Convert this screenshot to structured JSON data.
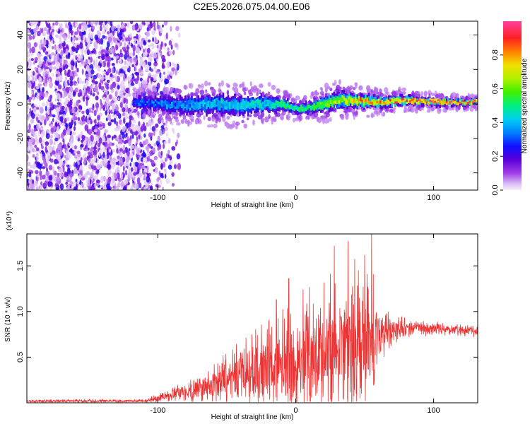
{
  "title": "C2E5.2026.075.04.00.E06",
  "chart_data": [
    {
      "type": "heatmap",
      "panel": "spectrogram",
      "xlabel": "Height of straight line (km)",
      "ylabel": "Frequency (Hz)",
      "xlim": [
        -195,
        132
      ],
      "ylim": [
        -50,
        48
      ],
      "xticks": [
        -100,
        0,
        100
      ],
      "yticks": [
        -40,
        -20,
        0,
        20,
        40
      ],
      "colorbar": {
        "label": "Normalized spectral amplitude",
        "range": [
          0,
          1
        ],
        "ticks": [
          0.0,
          0.2,
          0.4,
          0.6,
          0.8
        ],
        "tick_labels": [
          "0.0",
          "0.2",
          "0.4",
          "0.6",
          "0.8"
        ]
      },
      "noise_region_x": [
        -195,
        -95
      ],
      "ridge": {
        "x": [
          -118,
          -100,
          -80,
          -60,
          -40,
          -20,
          -10,
          0,
          10,
          20,
          30,
          40,
          60,
          80,
          100,
          132
        ],
        "freq": [
          1,
          0,
          -1,
          0,
          -1,
          0,
          0,
          -3,
          -2,
          0,
          2,
          2,
          1,
          2,
          1,
          1
        ],
        "width": [
          6,
          7,
          9,
          10,
          10,
          9,
          7,
          5,
          6,
          8,
          9,
          8,
          6,
          5,
          4,
          3
        ],
        "peak": [
          0.25,
          0.3,
          0.35,
          0.4,
          0.4,
          0.45,
          0.5,
          0.5,
          0.55,
          0.6,
          0.65,
          0.75,
          0.8,
          0.85,
          0.9,
          0.85
        ]
      }
    },
    {
      "type": "line",
      "panel": "snr",
      "xlabel": "Height of straight line (km)",
      "ylabel": "SNR (10 * v/v)",
      "multiplier": "(x10⁴)",
      "xlim": [
        -195,
        132
      ],
      "ylim": [
        0,
        1.85
      ],
      "xticks": [
        -100,
        0,
        100
      ],
      "yticks": [
        0.5,
        1.0,
        1.5
      ],
      "ytick_labels": [
        "0.5",
        "1.0",
        "1.5"
      ],
      "color": "#ee3333",
      "envelope": {
        "x": [
          -195,
          -110,
          -100,
          -80,
          -60,
          -40,
          -20,
          0,
          20,
          30,
          40,
          50,
          55,
          60,
          70,
          80,
          100,
          132
        ],
        "base": [
          0.02,
          0.02,
          0.05,
          0.12,
          0.2,
          0.3,
          0.4,
          0.45,
          0.55,
          0.6,
          0.55,
          0.6,
          0.7,
          0.75,
          0.8,
          0.82,
          0.82,
          0.78
        ],
        "amp": [
          0.02,
          0.02,
          0.06,
          0.12,
          0.25,
          0.4,
          0.6,
          0.75,
          0.9,
          1.0,
          1.1,
          1.0,
          0.9,
          0.35,
          0.2,
          0.12,
          0.08,
          0.08
        ]
      },
      "spikes": [
        {
          "x": -40,
          "y": 0.55
        },
        {
          "x": -14,
          "y": 1.13
        },
        {
          "x": -5,
          "y": 1.36
        },
        {
          "x": 28,
          "y": 1.72
        },
        {
          "x": 38,
          "y": 1.77
        },
        {
          "x": 50,
          "y": 1.62
        },
        {
          "x": 55,
          "y": 1.85
        },
        {
          "x": 45,
          "y": 1.25
        }
      ]
    }
  ]
}
